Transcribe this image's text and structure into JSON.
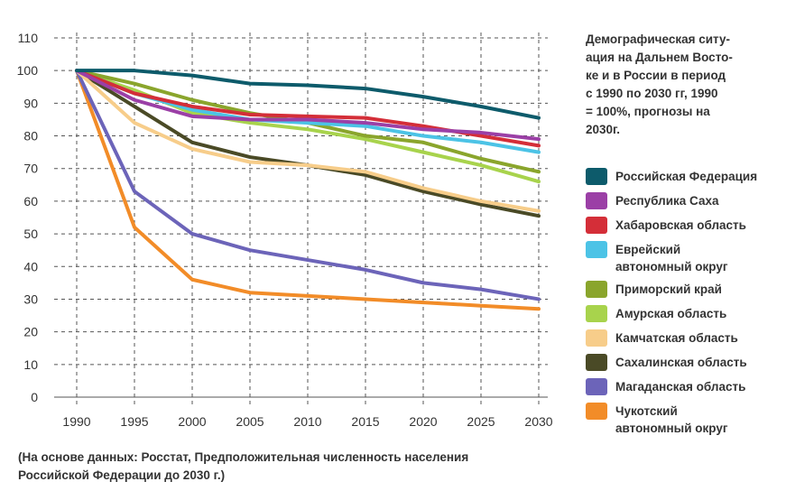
{
  "chart_data": {
    "type": "line",
    "title": "Демографическая ситу-\nация на Дальнем Восто-\nке и в России в период\nс 1990 по 2030 гг, 1990\n= 100%, прогнозы на\n2030г.",
    "xlabel": "",
    "ylabel": "",
    "x": [
      1990,
      1995,
      2000,
      2005,
      2010,
      2015,
      2020,
      2025,
      2030
    ],
    "xticks": [
      "1990",
      "1995",
      "2000",
      "2005",
      "2010",
      "2015",
      "2020",
      "2025",
      "2030"
    ],
    "ylim": [
      0,
      110
    ],
    "yticks": [
      "0",
      "10",
      "20",
      "30",
      "40",
      "50",
      "60",
      "70",
      "80",
      "90",
      "100",
      "110"
    ],
    "grid": true,
    "legend_position": "right",
    "series": [
      {
        "name": "Российская Федерация",
        "color": "#0d5b6b",
        "values": [
          100,
          100,
          98.5,
          96,
          95.5,
          94.5,
          92,
          89,
          85.5
        ]
      },
      {
        "name": "Республика Саха",
        "color": "#9b3fa6",
        "values": [
          100,
          91,
          86,
          85,
          85,
          84,
          82,
          81,
          79
        ]
      },
      {
        "name": "Хабаровская область",
        "color": "#d42e38",
        "values": [
          100,
          93,
          89,
          86.5,
          86,
          85.5,
          83,
          80,
          77
        ]
      },
      {
        "name": "Еврейский\nавтономный округ",
        "color": "#4cc3e6",
        "values": [
          100,
          93,
          88,
          85,
          84,
          83,
          80,
          78,
          75
        ]
      },
      {
        "name": "Приморский край",
        "color": "#8aa52c",
        "values": [
          100,
          96,
          91,
          87,
          84,
          80,
          78,
          73,
          69
        ]
      },
      {
        "name": "Амурская область",
        "color": "#a8d34c",
        "values": [
          100,
          94,
          87,
          84,
          82,
          79,
          75,
          71,
          66
        ]
      },
      {
        "name": "Камчатская область",
        "color": "#f7cd8a",
        "values": [
          100,
          84,
          76,
          72,
          71,
          69,
          64,
          60,
          57
        ]
      },
      {
        "name": "Сахалинская область",
        "color": "#4a4a26",
        "values": [
          100,
          89,
          78,
          73.5,
          71,
          68,
          63,
          59,
          55.5
        ]
      },
      {
        "name": "Магаданская область",
        "color": "#6c64b9",
        "values": [
          100,
          63,
          50,
          45,
          42,
          39,
          35,
          33,
          30
        ]
      },
      {
        "name": "Чукотский\nавтономный округ",
        "color": "#f28c28",
        "values": [
          100,
          52,
          36,
          32,
          31,
          30,
          29,
          28,
          27
        ]
      }
    ]
  },
  "source_note": "(На основе данных: Росстат, Предположительная численность населения\nРоссийской Федерации до 2030 г.)"
}
